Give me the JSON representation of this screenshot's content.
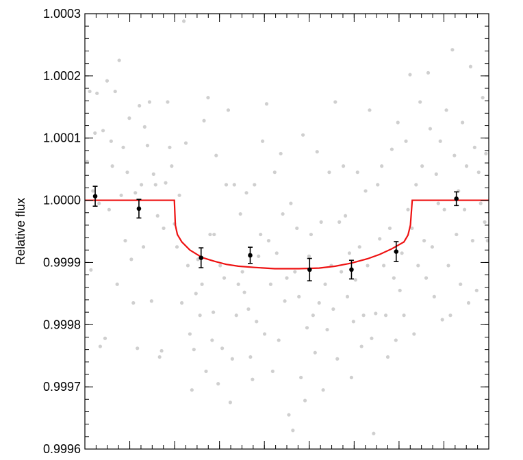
{
  "chart_data": {
    "type": "scatter",
    "title": "",
    "xlabel": "",
    "ylabel": "Relative flux",
    "xlim": [
      0,
      1
    ],
    "ylim": [
      0.9996,
      1.0003
    ],
    "y_ticks": [
      {
        "value": 1.0003,
        "label": "1.0003"
      },
      {
        "value": 1.0002,
        "label": "1.0002"
      },
      {
        "value": 1.0001,
        "label": "1.0001"
      },
      {
        "value": 1.0,
        "label": "1.0000"
      },
      {
        "value": 0.9999,
        "label": "0.9999"
      },
      {
        "value": 0.9998,
        "label": "0.9998"
      },
      {
        "value": 0.9997,
        "label": "0.9997"
      },
      {
        "value": 0.9996,
        "label": "0.9996"
      }
    ],
    "x_major_ticks": [
      0.1111,
      0.2222,
      0.3333,
      0.4444,
      0.5556,
      0.6667,
      0.7778,
      0.8889
    ],
    "grid": false,
    "legend": "none",
    "colors": {
      "raw": "#cfcfcf",
      "binned": "#000000",
      "model": "#ee1111"
    },
    "series": [
      {
        "kind": "raw",
        "points": [
          [
            0.006,
            1.000062
          ],
          [
            0.012,
            1.000175
          ],
          [
            0.015,
            0.999888
          ],
          [
            0.02,
            1.000015
          ],
          [
            0.025,
            1.000108
          ],
          [
            0.03,
            1.000172
          ],
          [
            0.035,
            0.999995
          ],
          [
            0.038,
            0.999765
          ],
          [
            0.045,
            1.000112
          ],
          [
            0.05,
            0.999778
          ],
          [
            0.055,
            1.000192
          ],
          [
            0.06,
            0.999985
          ],
          [
            0.065,
            1.000095
          ],
          [
            0.068,
            1.000055
          ],
          [
            0.075,
            1.000175
          ],
          [
            0.08,
            0.999865
          ],
          [
            0.085,
            1.000225
          ],
          [
            0.09,
            1.000008
          ],
          [
            0.095,
            1.000085
          ],
          [
            0.1,
            0.999935
          ],
          [
            0.105,
            1.000045
          ],
          [
            0.11,
            1.000132
          ],
          [
            0.115,
            0.999905
          ],
          [
            0.12,
            0.999835
          ],
          [
            0.125,
            1.000012
          ],
          [
            0.13,
            0.999762
          ],
          [
            0.135,
            1.000152
          ],
          [
            0.14,
            1.000025
          ],
          [
            0.145,
            0.999925
          ],
          [
            0.148,
            1.000118
          ],
          [
            0.155,
            1.000088
          ],
          [
            0.16,
            1.000158
          ],
          [
            0.165,
            0.999838
          ],
          [
            0.17,
            1.000042
          ],
          [
            0.175,
            1.000025
          ],
          [
            0.18,
            0.999975
          ],
          [
            0.185,
            0.999748
          ],
          [
            0.19,
            0.999758
          ],
          [
            0.195,
            0.999955
          ],
          [
            0.2,
            1.000028
          ],
          [
            0.205,
            1.000158
          ],
          [
            0.21,
            1.000085
          ],
          [
            0.215,
            1.000055
          ],
          [
            0.222,
            0.999962
          ],
          [
            0.228,
            0.999925
          ],
          [
            0.234,
            1.000008
          ],
          [
            0.24,
            0.999835
          ],
          [
            0.245,
            1.000288
          ],
          [
            0.25,
            1.000092
          ],
          [
            0.255,
            0.999895
          ],
          [
            0.26,
            0.999785
          ],
          [
            0.265,
            0.999695
          ],
          [
            0.27,
            0.99976
          ],
          [
            0.275,
            0.99985
          ],
          [
            0.28,
            0.999905
          ],
          [
            0.285,
            0.999815
          ],
          [
            0.29,
            0.999865
          ],
          [
            0.295,
            1.000128
          ],
          [
            0.3,
            0.999725
          ],
          [
            0.305,
            1.000165
          ],
          [
            0.31,
            0.999945
          ],
          [
            0.315,
            0.999775
          ],
          [
            0.318,
            0.99982
          ],
          [
            0.32,
            0.999945
          ],
          [
            0.325,
            1.000072
          ],
          [
            0.33,
            0.999705
          ],
          [
            0.335,
            0.999895
          ],
          [
            0.34,
            0.999762
          ],
          [
            0.345,
            0.999875
          ],
          [
            0.35,
            1.000025
          ],
          [
            0.355,
            1.000145
          ],
          [
            0.36,
            0.999675
          ],
          [
            0.365,
            0.999745
          ],
          [
            0.37,
            1.000025
          ],
          [
            0.375,
            0.999815
          ],
          [
            0.38,
            0.999865
          ],
          [
            0.385,
            0.999978
          ],
          [
            0.39,
            0.999885
          ],
          [
            0.395,
            0.999852
          ],
          [
            0.4,
            1.000012
          ],
          [
            0.405,
            0.999825
          ],
          [
            0.41,
            0.999748
          ],
          [
            0.415,
            0.999712
          ],
          [
            0.42,
            1.000025
          ],
          [
            0.425,
            0.999805
          ],
          [
            0.43,
            0.99991
          ],
          [
            0.435,
            0.999945
          ],
          [
            0.44,
            1.000095
          ],
          [
            0.445,
            0.999785
          ],
          [
            0.45,
            1.000155
          ],
          [
            0.455,
            0.999935
          ],
          [
            0.46,
            0.999865
          ],
          [
            0.465,
            0.999725
          ],
          [
            0.47,
            1.000045
          ],
          [
            0.475,
            0.999915
          ],
          [
            0.48,
            0.999775
          ],
          [
            0.485,
            1.000075
          ],
          [
            0.49,
            0.999978
          ],
          [
            0.495,
            0.999838
          ],
          [
            0.5,
            0.999875
          ],
          [
            0.505,
            0.999655
          ],
          [
            0.51,
            0.999995
          ],
          [
            0.515,
            0.99963
          ],
          [
            0.52,
            0.999885
          ],
          [
            0.525,
            0.999955
          ],
          [
            0.53,
            0.999845
          ],
          [
            0.535,
            0.999715
          ],
          [
            0.54,
            1.000105
          ],
          [
            0.545,
            0.999678
          ],
          [
            0.55,
            0.999795
          ],
          [
            0.555,
            0.99991
          ],
          [
            0.56,
            0.999945
          ],
          [
            0.565,
            0.999815
          ],
          [
            0.57,
            0.999755
          ],
          [
            0.575,
            1.000078
          ],
          [
            0.58,
            0.999835
          ],
          [
            0.585,
            0.999965
          ],
          [
            0.59,
            0.999695
          ],
          [
            0.595,
            0.999865
          ],
          [
            0.6,
            0.999792
          ],
          [
            0.605,
            1.000045
          ],
          [
            0.61,
            0.999895
          ],
          [
            0.615,
            0.999825
          ],
          [
            0.62,
            1.000158
          ],
          [
            0.625,
            0.999745
          ],
          [
            0.63,
            0.999965
          ],
          [
            0.635,
            0.999885
          ],
          [
            0.64,
            1.000055
          ],
          [
            0.645,
            0.999975
          ],
          [
            0.65,
            0.999845
          ],
          [
            0.655,
            0.999915
          ],
          [
            0.66,
            0.999715
          ],
          [
            0.665,
            0.999805
          ],
          [
            0.67,
            0.999872
          ],
          [
            0.675,
            1.000045
          ],
          [
            0.68,
            0.999925
          ],
          [
            0.685,
            0.999765
          ],
          [
            0.69,
            0.999815
          ],
          [
            0.695,
            1.000015
          ],
          [
            0.7,
            0.999895
          ],
          [
            0.705,
            1.000145
          ],
          [
            0.71,
            0.999778
          ],
          [
            0.715,
            0.999625
          ],
          [
            0.72,
            0.999818
          ],
          [
            0.725,
            1.000025
          ],
          [
            0.73,
            0.999938
          ],
          [
            0.735,
            1.000055
          ],
          [
            0.74,
            0.999895
          ],
          [
            0.745,
            0.999815
          ],
          [
            0.75,
            0.999748
          ],
          [
            0.755,
            0.999955
          ],
          [
            0.76,
            1.000082
          ],
          [
            0.765,
            0.999875
          ],
          [
            0.77,
            0.999775
          ],
          [
            0.775,
            1.000125
          ],
          [
            0.78,
            0.999855
          ],
          [
            0.785,
            0.999915
          ],
          [
            0.79,
            0.999815
          ],
          [
            0.795,
            1.000095
          ],
          [
            0.8,
            0.999985
          ],
          [
            0.805,
            1.000202
          ],
          [
            0.81,
            0.999955
          ],
          [
            0.815,
            0.999785
          ],
          [
            0.82,
            1.000025
          ],
          [
            0.825,
            0.999895
          ],
          [
            0.83,
            1.000158
          ],
          [
            0.835,
            1.000055
          ],
          [
            0.84,
            0.999935
          ],
          [
            0.845,
            0.999875
          ],
          [
            0.85,
            1.000205
          ],
          [
            0.855,
            1.000115
          ],
          [
            0.86,
            0.999925
          ],
          [
            0.865,
            0.999845
          ],
          [
            0.87,
            1.000042
          ],
          [
            0.875,
            0.999995
          ],
          [
            0.88,
            1.000095
          ],
          [
            0.885,
            0.999808
          ],
          [
            0.89,
            0.999985
          ],
          [
            0.895,
            1.000145
          ],
          [
            0.9,
            0.999895
          ],
          [
            0.905,
            0.999815
          ],
          [
            0.91,
            1.000242
          ],
          [
            0.915,
            1.000072
          ],
          [
            0.92,
            0.999945
          ],
          [
            0.925,
            1.000015
          ],
          [
            0.93,
            0.999865
          ],
          [
            0.935,
            1.000125
          ],
          [
            0.94,
            0.999985
          ],
          [
            0.945,
            1.000055
          ],
          [
            0.95,
            0.999835
          ],
          [
            0.955,
            1.000215
          ],
          [
            0.96,
            0.999935
          ],
          [
            0.965,
            1.000085
          ],
          [
            0.97,
            0.999855
          ],
          [
            0.975,
            1.000045
          ],
          [
            0.98,
            0.999995
          ],
          [
            0.985,
            1.000165
          ],
          [
            0.99,
            0.999965
          ],
          [
            0.993,
            1.000075
          ],
          [
            0.997,
            0.999935
          ]
        ]
      },
      {
        "kind": "binned",
        "points": [
          {
            "x": 0.0255,
            "y": 1.0000065,
            "err": 1.6e-05
          },
          {
            "x": 0.1338,
            "y": 0.9999865,
            "err": 1.5e-05
          },
          {
            "x": 0.2877,
            "y": 0.9999075,
            "err": 1.6e-05
          },
          {
            "x": 0.4093,
            "y": 0.9999115,
            "err": 1.3e-05
          },
          {
            "x": 0.5564,
            "y": 0.9998885,
            "err": 1.8e-05
          },
          {
            "x": 0.6601,
            "y": 0.9998885,
            "err": 1.5e-05
          },
          {
            "x": 0.7708,
            "y": 0.9999175,
            "err": 1.6e-05
          },
          {
            "x": 0.9198,
            "y": 1.0000025,
            "err": 1.1e-05
          }
        ]
      },
      {
        "kind": "model",
        "points": [
          [
            0.0,
            1.0
          ],
          [
            0.2215,
            1.0
          ],
          [
            0.224,
            0.99996
          ],
          [
            0.229,
            0.999945
          ],
          [
            0.24,
            0.999933
          ],
          [
            0.26,
            0.99992
          ],
          [
            0.29,
            0.999908
          ],
          [
            0.32,
            0.999902
          ],
          [
            0.35,
            0.999897
          ],
          [
            0.38,
            0.999894
          ],
          [
            0.42,
            0.999892
          ],
          [
            0.47,
            0.99989
          ],
          [
            0.53,
            0.99989
          ],
          [
            0.58,
            0.999891
          ],
          [
            0.62,
            0.999894
          ],
          [
            0.66,
            0.999899
          ],
          [
            0.7,
            0.999906
          ],
          [
            0.73,
            0.999913
          ],
          [
            0.76,
            0.999922
          ],
          [
            0.79,
            0.999933
          ],
          [
            0.8,
            0.999944
          ],
          [
            0.806,
            0.99996
          ],
          [
            0.8105,
            1.0
          ],
          [
            1.0,
            1.0
          ]
        ]
      }
    ]
  }
}
